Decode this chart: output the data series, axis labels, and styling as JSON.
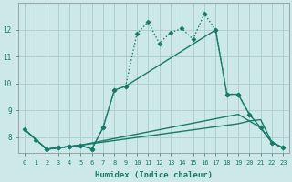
{
  "bg_color": "#cce8e8",
  "grid_color": "#aacccc",
  "line_color": "#1a7a6a",
  "line_width": 1.0,
  "marker_size": 2.5,
  "xlabel": "Humidex (Indice chaleur)",
  "xlim": [
    -0.5,
    23.5
  ],
  "ylim": [
    7.4,
    13.0
  ],
  "yticks": [
    8,
    9,
    10,
    11,
    12
  ],
  "xticks": [
    0,
    1,
    2,
    3,
    4,
    5,
    6,
    7,
    8,
    9,
    10,
    11,
    12,
    13,
    14,
    15,
    16,
    17,
    18,
    19,
    20,
    21,
    22,
    23
  ],
  "lines": [
    {
      "x": [
        0,
        1,
        2,
        3,
        4,
        5,
        6,
        7,
        8,
        9,
        10,
        11,
        12,
        13,
        14,
        15,
        16,
        17,
        18,
        19,
        20,
        21,
        22,
        23
      ],
      "y": [
        8.3,
        7.9,
        7.55,
        7.6,
        7.65,
        7.7,
        7.55,
        8.35,
        9.75,
        9.9,
        11.85,
        12.3,
        11.5,
        11.9,
        12.05,
        11.65,
        12.6,
        12.0,
        9.6,
        9.6,
        8.85,
        8.35,
        7.8,
        7.6
      ],
      "linestyle": "dotted",
      "marker": "D"
    },
    {
      "x": [
        2,
        3,
        4,
        5,
        6,
        7,
        8,
        9,
        17,
        18,
        19,
        20,
        21,
        22,
        23
      ],
      "y": [
        7.55,
        7.6,
        7.65,
        7.7,
        7.55,
        8.35,
        9.75,
        9.9,
        12.0,
        9.6,
        9.6,
        8.85,
        8.35,
        7.8,
        7.6
      ],
      "linestyle": "solid",
      "marker": "D"
    },
    {
      "x": [
        0,
        2,
        5,
        19,
        20,
        21,
        22,
        23
      ],
      "y": [
        8.3,
        7.55,
        7.7,
        8.5,
        8.6,
        8.65,
        7.8,
        7.6
      ],
      "linestyle": "solid",
      "marker": null
    },
    {
      "x": [
        0,
        2,
        5,
        19,
        20,
        21,
        22,
        23
      ],
      "y": [
        8.3,
        7.55,
        7.7,
        8.85,
        8.6,
        8.35,
        7.8,
        7.6
      ],
      "linestyle": "solid",
      "marker": null
    }
  ]
}
